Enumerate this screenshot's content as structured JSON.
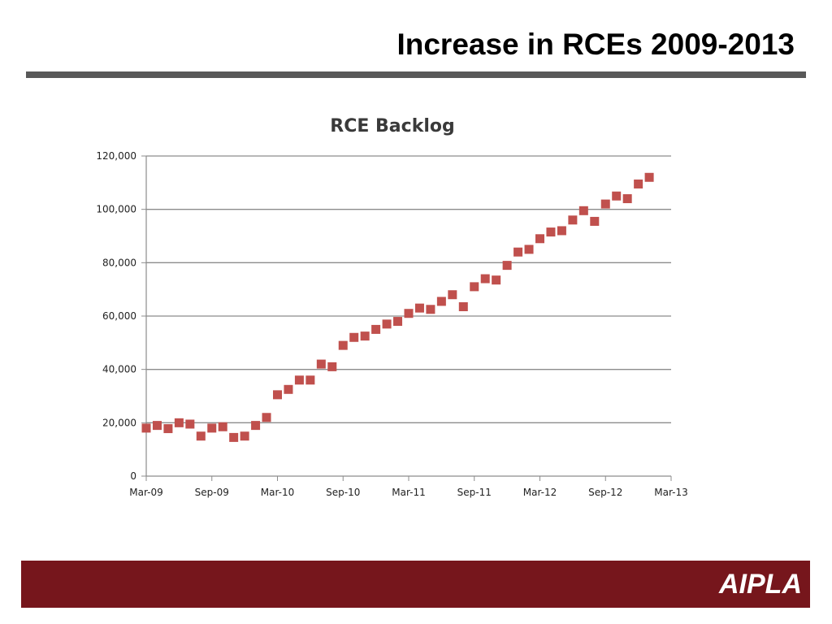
{
  "slide": {
    "title": "Increase in RCEs 2009-2013",
    "footer_logo": "AIPLA"
  },
  "colors": {
    "rule": "#595959",
    "footer": "#76161c",
    "marker": "#c0504d",
    "gridline": "#8c8c8c",
    "axis": "#8c8c8c"
  },
  "chart_data": {
    "type": "scatter",
    "title": "RCE Backlog",
    "xlabel": "",
    "ylabel": "",
    "x_axis_type": "date",
    "xlim": [
      "2009-03",
      "2013-03"
    ],
    "ylim": [
      0,
      120000
    ],
    "y_ticks": [
      0,
      20000,
      40000,
      60000,
      80000,
      100000,
      120000
    ],
    "y_tick_labels": [
      "0",
      "20,000",
      "40,000",
      "60,000",
      "80,000",
      "100,000",
      "120,000"
    ],
    "x_ticks": [
      "2009-03",
      "2009-09",
      "2010-03",
      "2010-09",
      "2011-03",
      "2011-09",
      "2012-03",
      "2012-09",
      "2013-03"
    ],
    "x_tick_labels": [
      "Mar-09",
      "Sep-09",
      "Mar-10",
      "Sep-10",
      "Mar-11",
      "Sep-11",
      "Mar-12",
      "Sep-12",
      "Mar-13"
    ],
    "grid": "horizontal",
    "legend": "none",
    "series": [
      {
        "x": [
          "2009-03",
          "2009-04",
          "2009-05",
          "2009-06",
          "2009-07",
          "2009-08",
          "2009-09",
          "2009-10",
          "2009-11",
          "2009-12",
          "2010-01",
          "2010-02",
          "2010-03",
          "2010-04",
          "2010-05",
          "2010-06",
          "2010-07",
          "2010-08",
          "2010-09",
          "2010-10",
          "2010-11",
          "2010-12",
          "2011-01",
          "2011-02",
          "2011-03",
          "2011-04",
          "2011-05",
          "2011-06",
          "2011-07",
          "2011-08",
          "2011-09",
          "2011-10",
          "2011-11",
          "2011-12",
          "2012-01",
          "2012-02",
          "2012-03",
          "2012-04",
          "2012-05",
          "2012-06",
          "2012-07",
          "2012-08",
          "2012-09",
          "2012-10",
          "2012-11",
          "2012-12",
          "2013-01"
        ],
        "y": [
          18000,
          19000,
          17800,
          20000,
          19500,
          15000,
          18000,
          18500,
          14500,
          15000,
          19000,
          22000,
          30500,
          32500,
          36000,
          36000,
          42000,
          41000,
          49000,
          52000,
          52500,
          55000,
          57000,
          58000,
          61000,
          63000,
          62500,
          65500,
          68000,
          63500,
          71000,
          74000,
          73500,
          79000,
          84000,
          85000,
          89000,
          91500,
          92000,
          96000,
          99500,
          95500,
          102000,
          105000,
          104000,
          109500,
          112000
        ]
      }
    ]
  }
}
